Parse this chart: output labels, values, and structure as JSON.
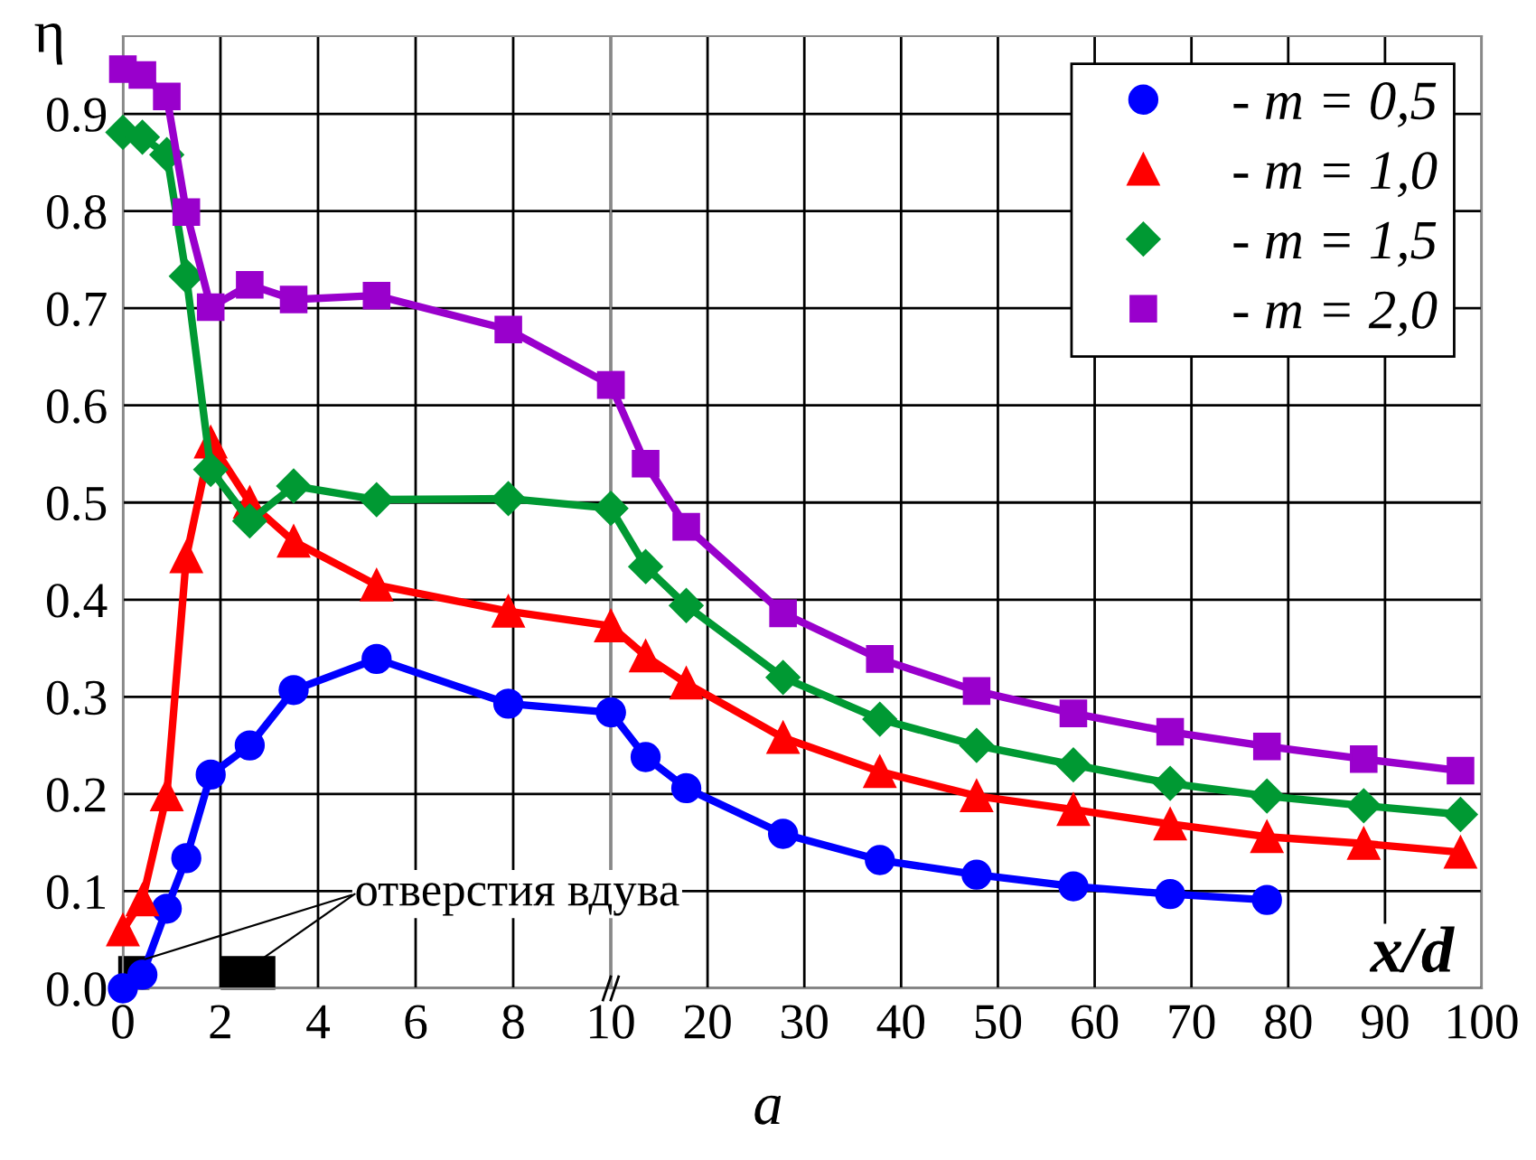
{
  "chart_data": [
    {
      "type": "line",
      "ylabel": "η",
      "x": [
        0,
        0.4,
        0.9,
        1.3,
        1.8,
        2.6,
        3.5,
        5.2,
        7.9,
        10
      ],
      "series": [
        {
          "color": "#0000ff",
          "marker": "circle",
          "values": [
            0.0,
            0.014,
            0.082,
            0.134,
            0.22,
            0.25,
            0.307,
            0.339,
            0.293,
            0.284
          ]
        },
        {
          "color": "#ff0000",
          "marker": "triangle",
          "values": [
            0.06,
            0.091,
            0.199,
            0.444,
            0.562,
            0.5,
            0.46,
            0.415,
            0.388,
            0.373
          ]
        },
        {
          "color": "#009933",
          "marker": "diamond",
          "values": [
            0.881,
            0.876,
            0.858,
            0.733,
            0.534,
            0.481,
            0.517,
            0.503,
            0.504,
            0.494
          ]
        },
        {
          "color": "#9900cc",
          "marker": "square",
          "values": [
            0.946,
            0.94,
            0.918,
            0.799,
            0.701,
            0.724,
            0.709,
            0.713,
            0.678,
            0.621
          ]
        }
      ],
      "xlim": [
        0,
        10
      ],
      "xticks": [
        0,
        2,
        4,
        6,
        8,
        10
      ],
      "ylim": [
        0,
        0.98
      ],
      "yticks": [
        {
          "value": 0,
          "label": "0.0"
        },
        0.1,
        0.2,
        0.3,
        0.4,
        0.5,
        0.6,
        0.7,
        0.8,
        0.9
      ],
      "grid": true,
      "line_style": "solid",
      "annotations": [
        "отверстия вдува",
        "a"
      ]
    },
    {
      "type": "line",
      "xlabel": "x/d",
      "x": [
        10,
        13.6,
        17.8,
        27.8,
        37.8,
        47.8,
        57.8,
        67.8,
        77.8,
        87.8,
        97.8
      ],
      "series": [
        {
          "name": "- m = 0,5",
          "color": "#0000ff",
          "marker": "circle",
          "values": [
            0.284,
            0.238,
            0.206,
            0.159,
            0.132,
            0.117,
            0.105,
            0.097,
            0.091,
            null,
            null
          ]
        },
        {
          "name": "- m = 1,0",
          "color": "#ff0000",
          "marker": "triangle",
          "values": [
            0.373,
            0.342,
            0.314,
            0.258,
            0.223,
            0.198,
            0.184,
            0.169,
            0.156,
            0.149,
            0.14
          ]
        },
        {
          "name": "- m = 1,5",
          "color": "#009933",
          "marker": "diamond",
          "values": [
            0.494,
            0.434,
            0.394,
            0.32,
            0.277,
            0.25,
            0.23,
            0.211,
            0.198,
            0.188,
            0.179
          ]
        },
        {
          "name": "- m = 2,0",
          "color": "#9900cc",
          "marker": "square",
          "values": [
            0.621,
            0.54,
            0.475,
            0.386,
            0.339,
            0.306,
            0.283,
            0.264,
            0.249,
            0.236,
            0.224
          ]
        }
      ],
      "xlim": [
        10,
        100
      ],
      "xticks": [
        {
          "value": 10,
          "label": null
        },
        20,
        30,
        40,
        50,
        60,
        70,
        80,
        90,
        100
      ],
      "ylim": [
        0,
        0.98
      ],
      "yticks": [
        {
          "value": 0.0,
          "label": null
        },
        {
          "value": 0.1,
          "label": null
        },
        {
          "value": 0.2,
          "label": null
        },
        {
          "value": 0.3,
          "label": null
        },
        {
          "value": 0.4,
          "label": null
        },
        {
          "value": 0.5,
          "label": null
        },
        {
          "value": 0.6,
          "label": null
        },
        {
          "value": 0.7,
          "label": null
        },
        {
          "value": 0.8,
          "label": null
        },
        {
          "value": 0.9,
          "label": null
        }
      ],
      "tick_labels": "x",
      "grid": true,
      "legend": "top right",
      "line_style": "solid"
    }
  ]
}
